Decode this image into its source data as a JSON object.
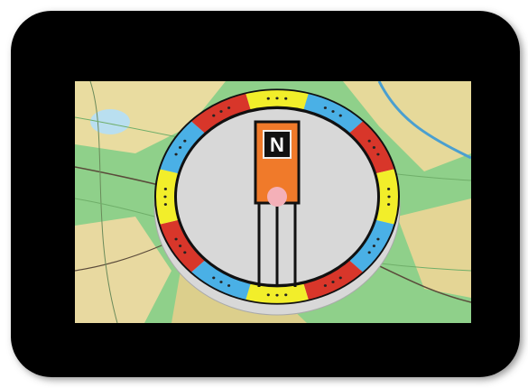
{
  "compass": {
    "label": "N"
  }
}
